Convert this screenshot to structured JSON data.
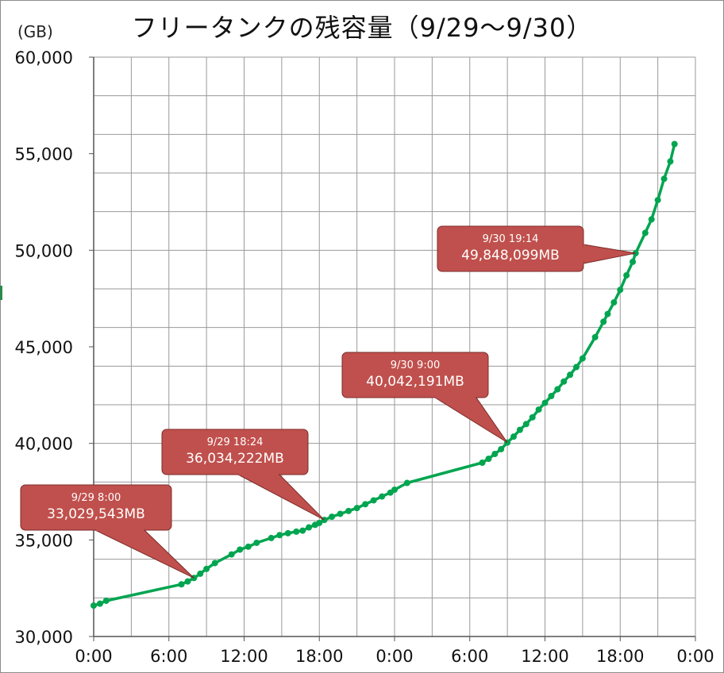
{
  "chart_data": {
    "type": "line",
    "title": "フリータンクの残容量（9/29～9/30）",
    "ylabel": "(GB)",
    "ylim": [
      30000,
      60000
    ],
    "y_ticks": [
      "30,000",
      "35,000",
      "40,000",
      "45,000",
      "50,000",
      "55,000",
      "60,000"
    ],
    "xlim": [
      "9/29 0:00",
      "10/1 0:00"
    ],
    "x_ticks": [
      "0:00",
      "6:00",
      "12:00",
      "18:00",
      "0:00",
      "6:00",
      "12:00",
      "18:00",
      "0:00"
    ],
    "grid": true,
    "line_color": "#00a550",
    "callout_color": "#c0504d",
    "series": [
      {
        "points": [
          [
            "9/29 0:00",
            31600
          ],
          [
            "9/29 0:30",
            31700
          ],
          [
            "9/29 1:00",
            31850
          ],
          [
            "9/29 7:00",
            32700
          ],
          [
            "9/29 7:30",
            32850
          ],
          [
            "9/29 8:00",
            33030
          ],
          [
            "9/29 8:30",
            33250
          ],
          [
            "9/29 9:00",
            33500
          ],
          [
            "9/29 9:40",
            33800
          ],
          [
            "9/29 11:00",
            34250
          ],
          [
            "9/29 11:40",
            34500
          ],
          [
            "9/29 12:20",
            34650
          ],
          [
            "9/29 13:00",
            34850
          ],
          [
            "9/29 14:10",
            35100
          ],
          [
            "9/29 14:50",
            35250
          ],
          [
            "9/29 15:30",
            35350
          ],
          [
            "9/29 16:10",
            35430
          ],
          [
            "9/29 16:40",
            35480
          ],
          [
            "9/29 17:10",
            35650
          ],
          [
            "9/29 17:40",
            35780
          ],
          [
            "9/29 18:00",
            35880
          ],
          [
            "9/29 18:24",
            36034
          ],
          [
            "9/29 19:00",
            36200
          ],
          [
            "9/29 19:40",
            36350
          ],
          [
            "9/29 20:20",
            36500
          ],
          [
            "9/29 21:00",
            36650
          ],
          [
            "9/29 21:40",
            36850
          ],
          [
            "9/29 22:20",
            37050
          ],
          [
            "9/29 23:00",
            37250
          ],
          [
            "9/29 23:40",
            37450
          ],
          [
            "9/30 0:00",
            37600
          ],
          [
            "9/30 1:00",
            37950
          ],
          [
            "9/30 7:00",
            39000
          ],
          [
            "9/30 7:30",
            39200
          ],
          [
            "9/30 8:00",
            39450
          ],
          [
            "9/30 8:30",
            39700
          ],
          [
            "9/30 9:00",
            40042
          ],
          [
            "9/30 9:30",
            40350
          ],
          [
            "9/30 10:00",
            40700
          ],
          [
            "9/30 10:30",
            41000
          ],
          [
            "9/30 11:00",
            41350
          ],
          [
            "9/30 11:30",
            41750
          ],
          [
            "9/30 12:00",
            42100
          ],
          [
            "9/30 12:30",
            42450
          ],
          [
            "9/30 13:00",
            42800
          ],
          [
            "9/30 13:30",
            43200
          ],
          [
            "9/30 14:00",
            43550
          ],
          [
            "9/30 14:30",
            43950
          ],
          [
            "9/30 15:00",
            44400
          ],
          [
            "9/30 16:00",
            45500
          ],
          [
            "9/30 16:40",
            46300
          ],
          [
            "9/30 17:00",
            46700
          ],
          [
            "9/30 17:30",
            47300
          ],
          [
            "9/30 18:00",
            47950
          ],
          [
            "9/30 18:30",
            48700
          ],
          [
            "9/30 19:00",
            49400
          ],
          [
            "9/30 19:14",
            49848
          ],
          [
            "9/30 20:00",
            50900
          ],
          [
            "9/30 20:30",
            51600
          ],
          [
            "9/30 21:00",
            52600
          ],
          [
            "9/30 21:30",
            53700
          ],
          [
            "9/30 22:00",
            54600
          ],
          [
            "9/30 22:20",
            55500
          ]
        ]
      }
    ],
    "annotations": [
      {
        "date": "9/29 8:00",
        "value": "33,029,543MB",
        "x": "9/29 8:00",
        "y": 33030
      },
      {
        "date": "9/29 18:24",
        "value": "36,034,222MB",
        "x": "9/29 18:24",
        "y": 36034
      },
      {
        "date": "9/30 9:00",
        "value": "40,042,191MB",
        "x": "9/30 9:00",
        "y": 40042
      },
      {
        "date": "9/30 19:14",
        "value": "49,848,099MB",
        "x": "9/30 19:14",
        "y": 49848
      }
    ]
  }
}
